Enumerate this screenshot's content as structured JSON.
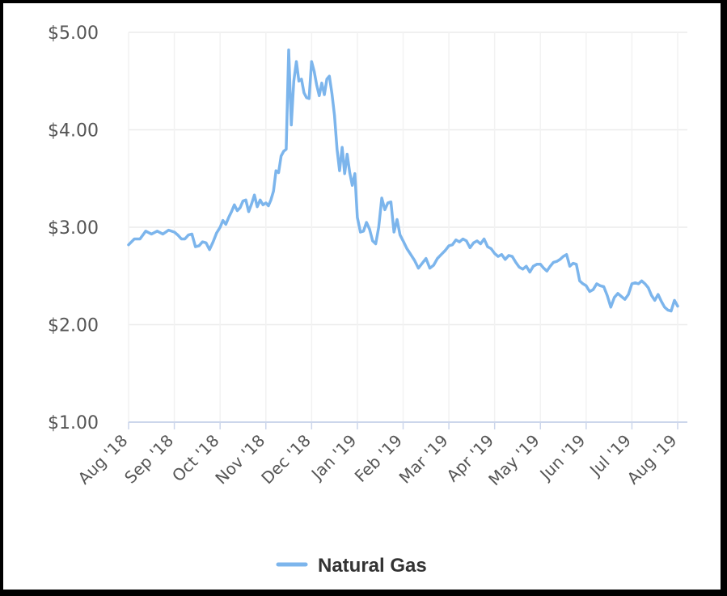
{
  "chart_data": {
    "type": "line",
    "ylim": [
      1.0,
      5.0
    ],
    "y_ticks": [
      {
        "value": 5.0,
        "label": "$5.00"
      },
      {
        "value": 4.0,
        "label": "$4.00"
      },
      {
        "value": 3.0,
        "label": "$3.00"
      },
      {
        "value": 2.0,
        "label": "$2.00"
      },
      {
        "value": 1.0,
        "label": "$1.00"
      }
    ],
    "x_ticks": [
      "Aug '18",
      "Sep '18",
      "Oct '18",
      "Nov '18",
      "Dec '18",
      "Jan '19",
      "Feb '19",
      "Mar '19",
      "Apr '19",
      "May '19",
      "Jun '19",
      "Jul '19",
      "Aug '19"
    ],
    "grid": true,
    "legend_position": "bottom-center",
    "series": [
      {
        "name": "Natural Gas",
        "color": "#7cb5ec",
        "points": [
          [
            "Aug '18",
            2.82
          ],
          [
            "Aug '18",
            2.88
          ],
          [
            "Aug '18",
            2.88
          ],
          [
            "Aug '18",
            2.96
          ],
          [
            "Aug '18",
            2.93
          ],
          [
            "Aug '18",
            2.96
          ],
          [
            "Aug '18",
            2.93
          ],
          [
            "Aug '18",
            2.97
          ],
          [
            "Sep '18",
            2.95
          ],
          [
            "Sep '18",
            2.92
          ],
          [
            "Sep '18",
            2.88
          ],
          [
            "Sep '18",
            2.88
          ],
          [
            "Sep '18",
            2.92
          ],
          [
            "Sep '18",
            2.93
          ],
          [
            "Sep '18",
            2.8
          ],
          [
            "Sep '18",
            2.81
          ],
          [
            "Sep '18",
            2.85
          ],
          [
            "Sep '18",
            2.84
          ],
          [
            "Sep '18",
            2.77
          ],
          [
            "Sep '18",
            2.85
          ],
          [
            "Sep '18",
            2.94
          ],
          [
            "Oct '18",
            3.0
          ],
          [
            "Oct '18",
            3.07
          ],
          [
            "Oct '18",
            3.03
          ],
          [
            "Oct '18",
            3.1
          ],
          [
            "Oct '18",
            3.16
          ],
          [
            "Oct '18",
            3.23
          ],
          [
            "Oct '18",
            3.17
          ],
          [
            "Oct '18",
            3.2
          ],
          [
            "Oct '18",
            3.27
          ],
          [
            "Oct '18",
            3.28
          ],
          [
            "Oct '18",
            3.16
          ],
          [
            "Oct '18",
            3.24
          ],
          [
            "Oct '18",
            3.33
          ],
          [
            "Oct '18",
            3.21
          ],
          [
            "Oct '18",
            3.28
          ],
          [
            "Oct '18",
            3.23
          ],
          [
            "Nov '18",
            3.25
          ],
          [
            "Nov '18",
            3.22
          ],
          [
            "Nov '18",
            3.28
          ],
          [
            "Nov '18",
            3.37
          ],
          [
            "Nov '18",
            3.58
          ],
          [
            "Nov '18",
            3.56
          ],
          [
            "Nov '18",
            3.73
          ],
          [
            "Nov '18",
            3.78
          ],
          [
            "Nov '18",
            3.8
          ],
          [
            "Nov '18",
            4.82
          ],
          [
            "Nov '18",
            4.05
          ],
          [
            "Nov '18",
            4.5
          ],
          [
            "Nov '18",
            4.7
          ],
          [
            "Nov '18",
            4.5
          ],
          [
            "Nov '18",
            4.52
          ],
          [
            "Nov '18",
            4.38
          ],
          [
            "Nov '18",
            4.33
          ],
          [
            "Nov '18",
            4.32
          ],
          [
            "Dec '18",
            4.7
          ],
          [
            "Dec '18",
            4.6
          ],
          [
            "Dec '18",
            4.46
          ],
          [
            "Dec '18",
            4.35
          ],
          [
            "Dec '18",
            4.48
          ],
          [
            "Dec '18",
            4.36
          ],
          [
            "Dec '18",
            4.52
          ],
          [
            "Dec '18",
            4.55
          ],
          [
            "Dec '18",
            4.37
          ],
          [
            "Dec '18",
            4.15
          ],
          [
            "Dec '18",
            3.8
          ],
          [
            "Dec '18",
            3.58
          ],
          [
            "Dec '18",
            3.82
          ],
          [
            "Dec '18",
            3.55
          ],
          [
            "Dec '18",
            3.75
          ],
          [
            "Dec '18",
            3.56
          ],
          [
            "Dec '18",
            3.43
          ],
          [
            "Dec '18",
            3.55
          ],
          [
            "Jan '19",
            3.1
          ],
          [
            "Jan '19",
            2.95
          ],
          [
            "Jan '19",
            2.96
          ],
          [
            "Jan '19",
            3.05
          ],
          [
            "Jan '19",
            2.98
          ],
          [
            "Jan '19",
            2.86
          ],
          [
            "Jan '19",
            2.83
          ],
          [
            "Jan '19",
            3.0
          ],
          [
            "Jan '19",
            3.3
          ],
          [
            "Jan '19",
            3.18
          ],
          [
            "Jan '19",
            3.25
          ],
          [
            "Jan '19",
            3.26
          ],
          [
            "Jan '19",
            2.95
          ],
          [
            "Jan '19",
            3.08
          ],
          [
            "Jan '19",
            2.92
          ],
          [
            "Feb '19",
            2.86
          ],
          [
            "Feb '19",
            2.78
          ],
          [
            "Feb '19",
            2.72
          ],
          [
            "Feb '19",
            2.66
          ],
          [
            "Feb '19",
            2.58
          ],
          [
            "Feb '19",
            2.63
          ],
          [
            "Feb '19",
            2.68
          ],
          [
            "Feb '19",
            2.58
          ],
          [
            "Feb '19",
            2.61
          ],
          [
            "Feb '19",
            2.68
          ],
          [
            "Feb '19",
            2.72
          ],
          [
            "Feb '19",
            2.76
          ],
          [
            "Mar '19",
            2.81
          ],
          [
            "Mar '19",
            2.82
          ],
          [
            "Mar '19",
            2.87
          ],
          [
            "Mar '19",
            2.85
          ],
          [
            "Mar '19",
            2.88
          ],
          [
            "Mar '19",
            2.86
          ],
          [
            "Mar '19",
            2.79
          ],
          [
            "Mar '19",
            2.84
          ],
          [
            "Mar '19",
            2.86
          ],
          [
            "Mar '19",
            2.83
          ],
          [
            "Mar '19",
            2.88
          ],
          [
            "Mar '19",
            2.8
          ],
          [
            "Mar '19",
            2.78
          ],
          [
            "Apr '19",
            2.73
          ],
          [
            "Apr '19",
            2.7
          ],
          [
            "Apr '19",
            2.72
          ],
          [
            "Apr '19",
            2.67
          ],
          [
            "Apr '19",
            2.71
          ],
          [
            "Apr '19",
            2.7
          ],
          [
            "Apr '19",
            2.64
          ],
          [
            "Apr '19",
            2.59
          ],
          [
            "Apr '19",
            2.57
          ],
          [
            "Apr '19",
            2.6
          ],
          [
            "Apr '19",
            2.54
          ],
          [
            "Apr '19",
            2.6
          ],
          [
            "Apr '19",
            2.62
          ],
          [
            "May '19",
            2.62
          ],
          [
            "May '19",
            2.58
          ],
          [
            "May '19",
            2.55
          ],
          [
            "May '19",
            2.6
          ],
          [
            "May '19",
            2.64
          ],
          [
            "May '19",
            2.65
          ],
          [
            "May '19",
            2.67
          ],
          [
            "May '19",
            2.7
          ],
          [
            "May '19",
            2.72
          ],
          [
            "May '19",
            2.6
          ],
          [
            "May '19",
            2.63
          ],
          [
            "May '19",
            2.62
          ],
          [
            "May '19",
            2.45
          ],
          [
            "May '19",
            2.42
          ],
          [
            "Jun '19",
            2.4
          ],
          [
            "Jun '19",
            2.34
          ],
          [
            "Jun '19",
            2.36
          ],
          [
            "Jun '19",
            2.42
          ],
          [
            "Jun '19",
            2.4
          ],
          [
            "Jun '19",
            2.39
          ],
          [
            "Jun '19",
            2.3
          ],
          [
            "Jun '19",
            2.18
          ],
          [
            "Jun '19",
            2.28
          ],
          [
            "Jun '19",
            2.32
          ],
          [
            "Jun '19",
            2.29
          ],
          [
            "Jun '19",
            2.26
          ],
          [
            "Jun '19",
            2.31
          ],
          [
            "Jul '19",
            2.42
          ],
          [
            "Jul '19",
            2.43
          ],
          [
            "Jul '19",
            2.42
          ],
          [
            "Jul '19",
            2.45
          ],
          [
            "Jul '19",
            2.42
          ],
          [
            "Jul '19",
            2.38
          ],
          [
            "Jul '19",
            2.3
          ],
          [
            "Jul '19",
            2.25
          ],
          [
            "Jul '19",
            2.31
          ],
          [
            "Jul '19",
            2.24
          ],
          [
            "Jul '19",
            2.18
          ],
          [
            "Jul '19",
            2.15
          ],
          [
            "Jul '19",
            2.14
          ],
          [
            "Jul '19",
            2.25
          ],
          [
            "Aug '19",
            2.19
          ]
        ]
      }
    ]
  }
}
